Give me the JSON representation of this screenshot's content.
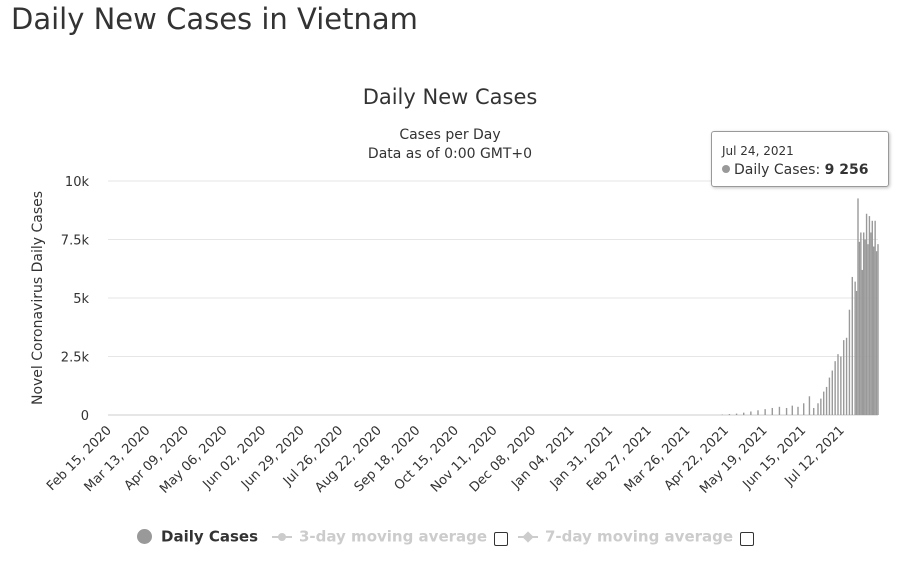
{
  "page": {
    "title": "Daily New Cases in Vietnam"
  },
  "chart_data": {
    "type": "bar",
    "title": "Daily New Cases",
    "subtitle_lines": [
      "Cases per Day",
      "Data as of 0:00 GMT+0"
    ],
    "xlabel": "",
    "ylabel": "Novel Coronavirus Daily Cases",
    "ylim": [
      0,
      10000
    ],
    "y_ticks": [
      0,
      2500,
      5000,
      7500,
      10000
    ],
    "y_tick_labels": [
      "0",
      "2.5k",
      "5k",
      "7.5k",
      "10k"
    ],
    "x_tick_labels": [
      "Feb 15, 2020",
      "Mar 13, 2020",
      "Apr 09, 2020",
      "May 06, 2020",
      "Jun 02, 2020",
      "Jun 29, 2020",
      "Jul 26, 2020",
      "Aug 22, 2020",
      "Sep 18, 2020",
      "Oct 15, 2020",
      "Nov 11, 2020",
      "Dec 08, 2020",
      "Jan 04, 2021",
      "Jan 31, 2021",
      "Feb 27, 2021",
      "Mar 26, 2021",
      "Apr 22, 2021",
      "May 19, 2021",
      "Jun 15, 2021",
      "Jul 12, 2021"
    ],
    "x_range": [
      "Feb 15, 2020",
      "Aug 07, 2021"
    ],
    "grid": true,
    "legend_position": "bottom-center",
    "colors": {
      "bar": "#999999",
      "grid": "#e6e6e6",
      "legend_inactive": "#cccccc"
    },
    "series": [
      {
        "name": "Daily Cases",
        "x": [
          "Apr 20, 2021",
          "Apr 25, 2021",
          "Apr 30, 2021",
          "May 05, 2021",
          "May 10, 2021",
          "May 15, 2021",
          "May 20, 2021",
          "May 25, 2021",
          "May 30, 2021",
          "Jun 04, 2021",
          "Jun 08, 2021",
          "Jun 12, 2021",
          "Jun 16, 2021",
          "Jun 20, 2021",
          "Jun 23, 2021",
          "Jun 26, 2021",
          "Jun 28, 2021",
          "Jun 30, 2021",
          "Jul 02, 2021",
          "Jul 04, 2021",
          "Jul 06, 2021",
          "Jul 08, 2021",
          "Jul 10, 2021",
          "Jul 12, 2021",
          "Jul 14, 2021",
          "Jul 16, 2021",
          "Jul 18, 2021",
          "Jul 20, 2021",
          "Jul 22, 2021",
          "Jul 23, 2021",
          "Jul 24, 2021",
          "Jul 25, 2021",
          "Jul 26, 2021",
          "Jul 27, 2021",
          "Jul 28, 2021",
          "Jul 29, 2021",
          "Jul 30, 2021",
          "Jul 31, 2021",
          "Aug 01, 2021",
          "Aug 02, 2021",
          "Aug 03, 2021",
          "Aug 04, 2021",
          "Aug 05, 2021",
          "Aug 06, 2021",
          "Aug 07, 2021"
        ],
        "values": [
          20,
          40,
          60,
          100,
          150,
          200,
          250,
          300,
          350,
          300,
          400,
          350,
          500,
          800,
          300,
          500,
          700,
          1000,
          1200,
          1600,
          1900,
          2300,
          2600,
          2500,
          3200,
          3300,
          4500,
          5900,
          5700,
          5300,
          9256,
          7400,
          7800,
          6200,
          7800,
          7500,
          8600,
          7300,
          8500,
          7800,
          8300,
          7200,
          8300,
          7000,
          7300
        ]
      },
      {
        "name": "3-day moving average",
        "visible": false
      },
      {
        "name": "7-day moving average",
        "visible": false
      }
    ],
    "tooltip": {
      "date": "Jul 24, 2021",
      "series": "Daily Cases",
      "value_label": "9 256"
    }
  }
}
